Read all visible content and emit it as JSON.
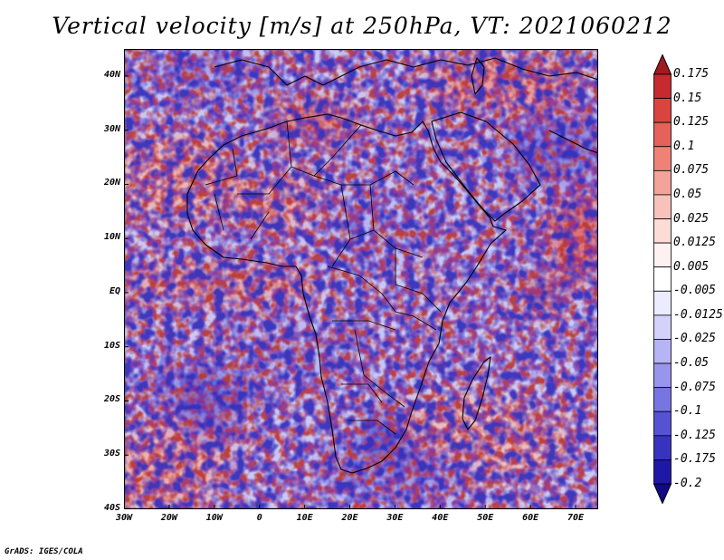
{
  "title": "Vertical velocity [m/s] at 250hPa, VT: 2021060212",
  "credit": "GrADS: IGES/COLA",
  "map": {
    "lon_range": [
      -30,
      75
    ],
    "lat_range": [
      -40,
      45
    ],
    "lat_labels": [
      "40N",
      "30N",
      "20N",
      "10N",
      "EQ",
      "10S",
      "20S",
      "30S",
      "40S"
    ],
    "lat_values": [
      40,
      30,
      20,
      10,
      0,
      -10,
      -20,
      -30,
      -40
    ],
    "lon_labels": [
      "30W",
      "20W",
      "10W",
      "0",
      "10E",
      "20E",
      "30E",
      "40E",
      "50E",
      "60E",
      "70E"
    ],
    "lon_values": [
      -30,
      -20,
      -10,
      0,
      10,
      20,
      30,
      40,
      50,
      60,
      70
    ]
  },
  "colorbar": {
    "labels": [
      "0.175",
      "0.15",
      "0.125",
      "0.1",
      "0.075",
      "0.05",
      "0.025",
      "0.0125",
      "0.005",
      "-0.005",
      "-0.0125",
      "-0.025",
      "-0.05",
      "-0.075",
      "-0.1",
      "-0.125",
      "-0.175",
      "-0.2"
    ],
    "colors": [
      "#a01a1e",
      "#c42a2e",
      "#d9443f",
      "#e5615a",
      "#ee8279",
      "#f4a39a",
      "#f8c2bb",
      "#fbdcd7",
      "#fff1ef",
      "#ffffff",
      "#ecebff",
      "#d3d2fb",
      "#b6b4f5",
      "#9795ec",
      "#7775e0",
      "#5653d2",
      "#3733be",
      "#1f18a6",
      "#100a88"
    ]
  }
}
